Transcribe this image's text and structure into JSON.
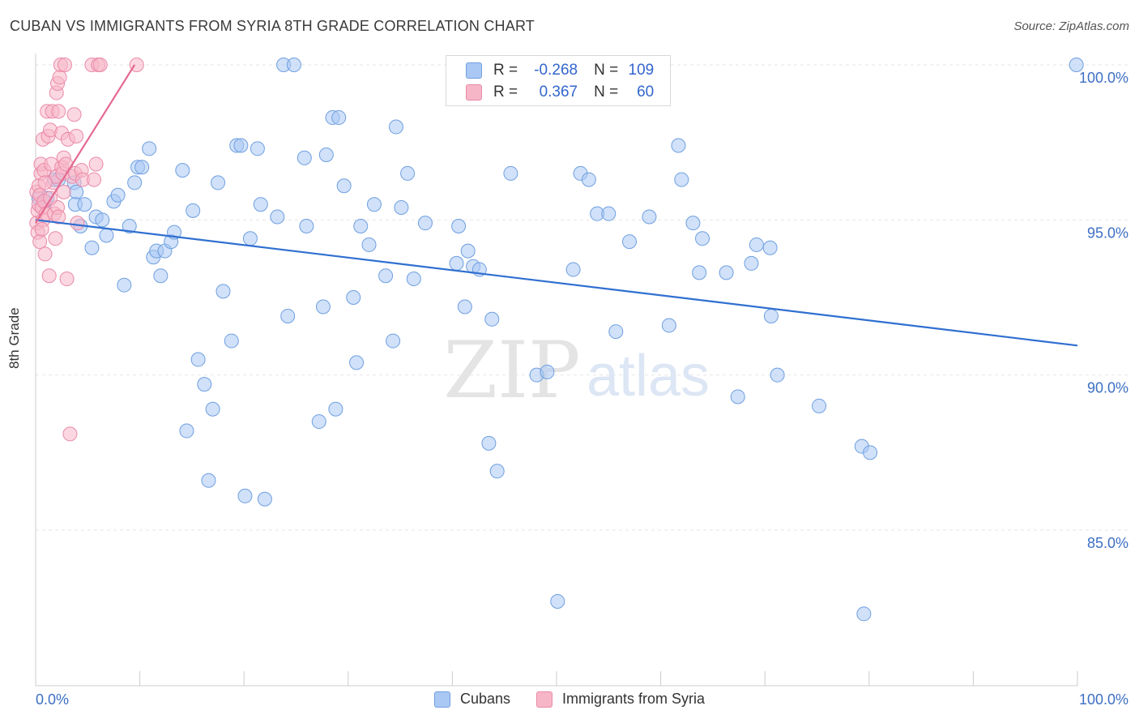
{
  "title": "CUBAN VS IMMIGRANTS FROM SYRIA 8TH GRADE CORRELATION CHART",
  "source": "Source: ZipAtlas.com",
  "watermark": {
    "zip": "ZIP",
    "atlas": "atlas"
  },
  "legend_top": {
    "rows": [
      {
        "r_label": "R =",
        "r_value": "-0.268",
        "n_label": "N =",
        "n_value": "109",
        "color": "#aac8f4"
      },
      {
        "r_label": "R =",
        "r_value": "0.367",
        "n_label": "N =",
        "n_value": "60",
        "color": "#f7b6c8"
      }
    ]
  },
  "legend_bottom": [
    {
      "label": "Cubans",
      "color": "#aac8f4"
    },
    {
      "label": "Immigrants from Syria",
      "color": "#f7b6c8"
    }
  ],
  "chart_data": {
    "type": "scatter",
    "title": "CUBAN VS IMMIGRANTS FROM SYRIA 8TH GRADE CORRELATION CHART",
    "xlabel": "",
    "ylabel": "8th Grade",
    "xlim": [
      0,
      100
    ],
    "ylim": [
      80.5,
      100.5
    ],
    "x_tick_labels": [
      "0.0%",
      "100.0%"
    ],
    "y_ticks": [
      85,
      90,
      95,
      100
    ],
    "y_tick_labels": [
      "85.0%",
      "90.0%",
      "95.0%",
      "100.0%"
    ],
    "grid": true,
    "legend_position": "top-center",
    "series": [
      {
        "name": "Cubans",
        "color": "#aac8f4",
        "stroke": "#6f9fe0",
        "trend": {
          "x": [
            0,
            100
          ],
          "y": [
            95.0,
            90.95
          ],
          "color": "#2f6fd0"
        },
        "points": [
          [
            0.3,
            95.7
          ],
          [
            0.9,
            95.6
          ],
          [
            1.1,
            95.7
          ],
          [
            1.8,
            96.3
          ],
          [
            2.2,
            96.3
          ],
          [
            3.7,
            96.2
          ],
          [
            3.9,
            95.9
          ],
          [
            3.8,
            95.5
          ],
          [
            4.3,
            94.8
          ],
          [
            4.7,
            95.5
          ],
          [
            5.4,
            94.1
          ],
          [
            5.8,
            95.1
          ],
          [
            6.4,
            95.0
          ],
          [
            6.8,
            94.5
          ],
          [
            7.5,
            95.6
          ],
          [
            7.9,
            95.8
          ],
          [
            8.5,
            92.9
          ],
          [
            9.0,
            94.8
          ],
          [
            9.5,
            96.2
          ],
          [
            9.8,
            96.7
          ],
          [
            10.2,
            96.7
          ],
          [
            10.9,
            97.3
          ],
          [
            11.3,
            93.8
          ],
          [
            11.6,
            94.0
          ],
          [
            12.0,
            93.2
          ],
          [
            12.4,
            94.0
          ],
          [
            13.0,
            94.3
          ],
          [
            13.3,
            94.6
          ],
          [
            14.1,
            96.6
          ],
          [
            14.5,
            88.2
          ],
          [
            15.1,
            95.3
          ],
          [
            15.6,
            90.5
          ],
          [
            16.2,
            89.7
          ],
          [
            16.6,
            86.6
          ],
          [
            17.0,
            88.9
          ],
          [
            17.5,
            96.2
          ],
          [
            18.0,
            92.7
          ],
          [
            18.8,
            91.1
          ],
          [
            19.3,
            97.4
          ],
          [
            19.7,
            97.4
          ],
          [
            20.1,
            86.1
          ],
          [
            20.6,
            94.4
          ],
          [
            21.3,
            97.3
          ],
          [
            21.6,
            95.5
          ],
          [
            22.0,
            86.0
          ],
          [
            23.2,
            95.1
          ],
          [
            23.8,
            100.0
          ],
          [
            24.2,
            91.9
          ],
          [
            24.8,
            100.0
          ],
          [
            25.8,
            97.0
          ],
          [
            26.0,
            94.8
          ],
          [
            27.2,
            88.5
          ],
          [
            27.6,
            92.2
          ],
          [
            27.9,
            97.1
          ],
          [
            28.5,
            98.3
          ],
          [
            28.8,
            88.9
          ],
          [
            29.1,
            98.3
          ],
          [
            29.6,
            96.1
          ],
          [
            30.5,
            92.5
          ],
          [
            30.8,
            90.4
          ],
          [
            31.2,
            94.8
          ],
          [
            32.0,
            94.2
          ],
          [
            32.5,
            95.5
          ],
          [
            33.6,
            93.2
          ],
          [
            34.3,
            91.1
          ],
          [
            34.6,
            98.0
          ],
          [
            35.1,
            95.4
          ],
          [
            35.7,
            96.5
          ],
          [
            36.3,
            93.1
          ],
          [
            37.4,
            94.9
          ],
          [
            40.4,
            93.6
          ],
          [
            40.6,
            94.8
          ],
          [
            41.2,
            92.2
          ],
          [
            41.5,
            94.0
          ],
          [
            42.0,
            93.5
          ],
          [
            42.6,
            93.4
          ],
          [
            43.5,
            87.8
          ],
          [
            43.8,
            91.8
          ],
          [
            44.3,
            86.9
          ],
          [
            45.6,
            96.5
          ],
          [
            48.1,
            90.0
          ],
          [
            49.1,
            90.1
          ],
          [
            50.1,
            82.7
          ],
          [
            51.6,
            93.4
          ],
          [
            52.3,
            96.5
          ],
          [
            53.1,
            96.3
          ],
          [
            53.9,
            95.2
          ],
          [
            55.0,
            95.2
          ],
          [
            55.7,
            91.4
          ],
          [
            57.0,
            94.3
          ],
          [
            58.9,
            95.1
          ],
          [
            60.8,
            91.6
          ],
          [
            61.7,
            97.4
          ],
          [
            62.0,
            96.3
          ],
          [
            63.1,
            94.9
          ],
          [
            63.7,
            93.3
          ],
          [
            64.0,
            94.4
          ],
          [
            66.3,
            93.3
          ],
          [
            67.4,
            89.3
          ],
          [
            68.7,
            93.6
          ],
          [
            69.2,
            94.2
          ],
          [
            70.5,
            94.1
          ],
          [
            70.6,
            91.9
          ],
          [
            71.2,
            90.0
          ],
          [
            75.2,
            89.0
          ],
          [
            79.3,
            87.7
          ],
          [
            80.1,
            87.5
          ],
          [
            79.5,
            82.3
          ],
          [
            99.9,
            100.0
          ]
        ]
      },
      {
        "name": "Immigrants from Syria",
        "color": "#f7b6c8",
        "stroke": "#ea8aa8",
        "trend": {
          "x": [
            0,
            9.5
          ],
          "y": [
            94.9,
            100.0
          ],
          "color": "#e46a92"
        },
        "points": [
          [
            0.1,
            95.9
          ],
          [
            0.1,
            94.9
          ],
          [
            0.2,
            95.3
          ],
          [
            0.2,
            94.6
          ],
          [
            0.3,
            96.1
          ],
          [
            0.3,
            95.5
          ],
          [
            0.4,
            94.3
          ],
          [
            0.4,
            95.8
          ],
          [
            0.5,
            96.5
          ],
          [
            0.5,
            96.8
          ],
          [
            0.6,
            95.4
          ],
          [
            0.7,
            95.0
          ],
          [
            0.7,
            97.6
          ],
          [
            0.8,
            96.6
          ],
          [
            0.8,
            95.6
          ],
          [
            0.9,
            93.9
          ],
          [
            1.0,
            95.2
          ],
          [
            1.1,
            98.5
          ],
          [
            1.2,
            97.7
          ],
          [
            1.3,
            93.2
          ],
          [
            1.4,
            97.9
          ],
          [
            1.5,
            96.8
          ],
          [
            1.6,
            98.5
          ],
          [
            1.7,
            96.2
          ],
          [
            1.8,
            95.2
          ],
          [
            1.9,
            94.4
          ],
          [
            2.0,
            99.1
          ],
          [
            2.0,
            96.4
          ],
          [
            2.1,
            99.4
          ],
          [
            2.1,
            95.4
          ],
          [
            2.2,
            98.5
          ],
          [
            2.3,
            99.6
          ],
          [
            2.4,
            100.0
          ],
          [
            2.5,
            96.7
          ],
          [
            2.5,
            97.8
          ],
          [
            2.6,
            96.5
          ],
          [
            2.7,
            95.9
          ],
          [
            2.7,
            97.0
          ],
          [
            2.8,
            100.0
          ],
          [
            2.9,
            96.8
          ],
          [
            3.0,
            93.1
          ],
          [
            3.1,
            97.6
          ],
          [
            3.3,
            88.1
          ],
          [
            3.5,
            96.4
          ],
          [
            3.7,
            98.4
          ],
          [
            3.8,
            96.5
          ],
          [
            3.9,
            97.7
          ],
          [
            4.0,
            94.9
          ],
          [
            4.4,
            96.6
          ],
          [
            4.5,
            96.3
          ],
          [
            5.4,
            100.0
          ],
          [
            5.6,
            96.3
          ],
          [
            5.8,
            96.8
          ],
          [
            6.0,
            100.0
          ],
          [
            6.2,
            100.0
          ],
          [
            9.7,
            100.0
          ],
          [
            0.6,
            94.7
          ],
          [
            1.4,
            95.7
          ],
          [
            2.2,
            95.1
          ],
          [
            0.9,
            96.2
          ]
        ]
      }
    ]
  }
}
